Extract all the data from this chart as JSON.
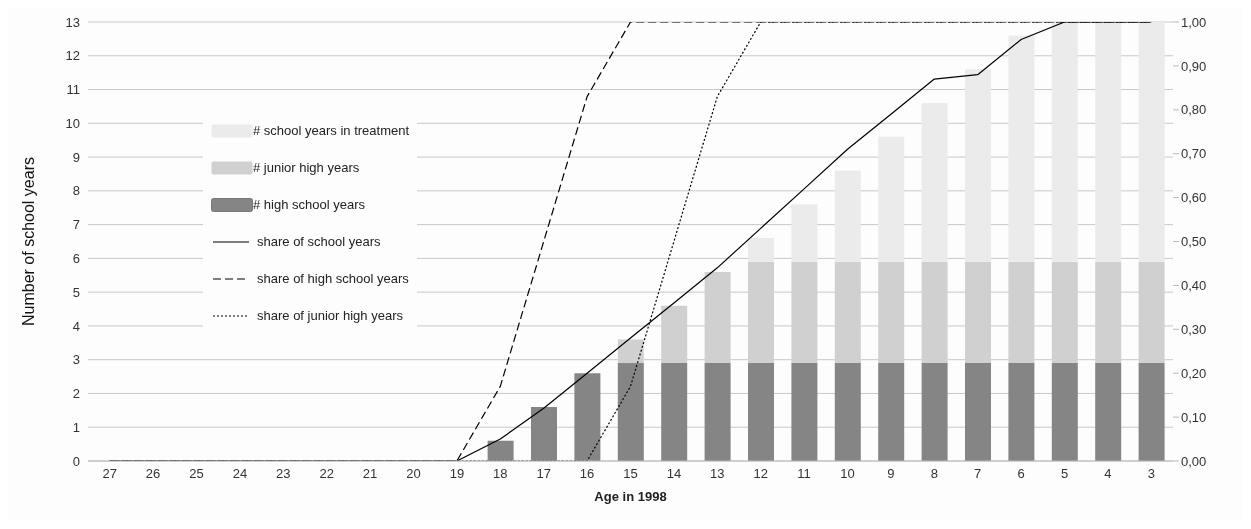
{
  "chart_data": {
    "type": "bar",
    "stacked": true,
    "xlabel": "Age in 1998",
    "ylabel": "Number of school years",
    "categories": [
      "27",
      "26",
      "25",
      "24",
      "23",
      "22",
      "21",
      "20",
      "19",
      "18",
      "17",
      "16",
      "15",
      "14",
      "13",
      "12",
      "11",
      "10",
      "9",
      "8",
      "7",
      "6",
      "5",
      "4",
      "3"
    ],
    "series": [
      {
        "name": "# high school years",
        "color": "#858585",
        "values": [
          0,
          0,
          0,
          0,
          0,
          0,
          0,
          0,
          0,
          0.6,
          1.6,
          2.6,
          2.9,
          2.9,
          2.9,
          2.9,
          2.9,
          2.9,
          2.9,
          2.9,
          2.9,
          2.9,
          2.9,
          2.9,
          2.9
        ]
      },
      {
        "name": "# junior high years",
        "color": "#d0d0d0",
        "values": [
          0,
          0,
          0,
          0,
          0,
          0,
          0,
          0,
          0,
          0,
          0,
          0,
          0.7,
          1.7,
          2.7,
          3.0,
          3.0,
          3.0,
          3.0,
          3.0,
          3.0,
          3.0,
          3.0,
          3.0,
          3.0
        ]
      },
      {
        "name": "# school years in treatment",
        "color": "#ebebeb",
        "values": [
          0,
          0,
          0,
          0,
          0,
          0,
          0,
          0,
          0,
          0,
          0,
          0,
          0,
          0,
          0,
          0.7,
          1.7,
          2.7,
          3.7,
          4.7,
          5.7,
          6.7,
          7.1,
          7.1,
          7.1
        ]
      },
      {
        "name": "share of school years",
        "type": "line",
        "axis": "y2",
        "color": "#000000",
        "line_style": "solid",
        "values": [
          0,
          0,
          0,
          0,
          0,
          0,
          0,
          0,
          0,
          0.05,
          0.12,
          0.2,
          0.28,
          0.36,
          0.44,
          0.53,
          0.62,
          0.71,
          0.79,
          0.87,
          0.88,
          0.96,
          1,
          1,
          1
        ]
      },
      {
        "name": "share of high school years",
        "type": "line",
        "axis": "y2",
        "color": "#000000",
        "line_style": "dashed",
        "values": [
          0,
          0,
          0,
          0,
          0,
          0,
          0,
          0,
          0,
          0.17,
          0.5,
          0.83,
          1,
          1,
          1,
          1,
          1,
          1,
          1,
          1,
          1,
          1,
          1,
          1,
          1
        ]
      },
      {
        "name": "share of junior high years",
        "type": "line",
        "axis": "y2",
        "color": "#000000",
        "line_style": "dotted",
        "values": [
          0,
          0,
          0,
          0,
          0,
          0,
          0,
          0,
          0,
          0,
          0,
          0,
          0.17,
          0.5,
          0.83,
          1,
          1,
          1,
          1,
          1,
          1,
          1,
          1,
          1,
          1
        ]
      }
    ],
    "ylim": [
      0,
      13
    ],
    "yticks": [
      0,
      1,
      2,
      3,
      4,
      5,
      6,
      7,
      8,
      9,
      10,
      11,
      12,
      13
    ],
    "y2lim": [
      0,
      1
    ],
    "y2ticks": [
      {
        "value": 0,
        "label": "0,00"
      },
      {
        "value": 0.1,
        "label": "0,10"
      },
      {
        "value": 0.2,
        "label": "0,20"
      },
      {
        "value": 0.3,
        "label": "0,30"
      },
      {
        "value": 0.4,
        "label": "0,40"
      },
      {
        "value": 0.5,
        "label": "0,50"
      },
      {
        "value": 0.6,
        "label": "0,60"
      },
      {
        "value": 0.7,
        "label": "0,70"
      },
      {
        "value": 0.8,
        "label": "0,80"
      },
      {
        "value": 0.9,
        "label": "0,90"
      },
      {
        "value": 1,
        "label": "1,00"
      }
    ],
    "grid": "y",
    "legend": "left",
    "marker": "none"
  }
}
